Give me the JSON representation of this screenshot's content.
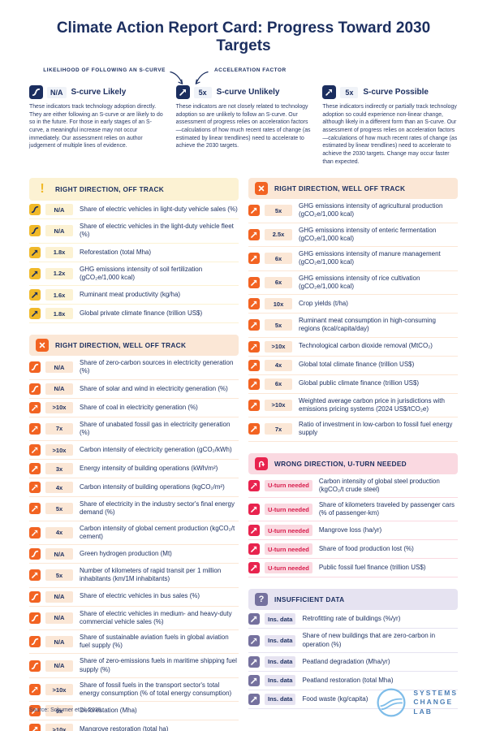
{
  "title": "Climate Action Report Card: Progress Toward 2030 Targets",
  "legend": {
    "likelihood_label": "LIKELIHOOD OF FOLLOWING AN S-CURVE",
    "acceleration_label": "ACCELERATION FACTOR",
    "items": [
      {
        "icon": "s-curve",
        "value": "N/A",
        "title": "S-curve Likely",
        "description": "These indicators track technology adoption directly. They are either following an S-curve or are likely to do so in the future. For those in early stages of an S-curve, a meaningful increase may not occur immediately. Our assessment relies on author judgement of multiple lines of evidence."
      },
      {
        "icon": "arrow",
        "value": "5x",
        "title": "S-curve Unlikely",
        "description": "These indicators are not closely related to technology adoption so are unlikely to follow an S-curve. Our assessment of progress relies on acceleration factors—calculations of how much recent rates of change (as estimated by linear trendlines) need to accelerate to achieve the 2030 targets."
      },
      {
        "icon": "dashed-arrow",
        "value": "5x",
        "title": "S-curve Possible",
        "description": "These indicators indirectly or partially track technology adoption so could experience non-linear change, although likely in a different form than an S-curve. Our assessment of progress relies on acceleration factors—calculations of how much recent rates of change (as estimated by linear trendlines) need to accelerate to achieve the 2030 targets. Change may occur faster than expected."
      }
    ]
  },
  "columns": [
    {
      "sections": [
        {
          "id": "right-direction-off-track",
          "theme": "yellow",
          "header_icon": "exclamation-icon",
          "header_glyph": "exclamation",
          "title": "RIGHT DIRECTION, OFF TRACK",
          "items": [
            {
              "icon": "s-curve",
              "value": "N/A",
              "label": "Share of electric vehicles in light-duty vehicle sales (%)"
            },
            {
              "icon": "s-curve",
              "value": "N/A",
              "label": "Share of electric vehicles in the light-duty vehicle fleet (%)"
            },
            {
              "icon": "arrow",
              "value": "1.8x",
              "label": "Reforestation (total Mha)"
            },
            {
              "icon": "arrow",
              "value": "1.2x",
              "label": "GHG emissions intensity of soil fertilization (gCO₂e/1,000 kcal)"
            },
            {
              "icon": "arrow",
              "value": "1.6x",
              "label": "Ruminant meat productivity (kg/ha)"
            },
            {
              "icon": "arrow",
              "value": "1.8x",
              "label": "Global private climate finance (trillion US$)"
            }
          ]
        },
        {
          "id": "right-direction-well-off-track-left",
          "theme": "orange",
          "header_icon": "x-icon",
          "header_glyph": "x",
          "title": "RIGHT DIRECTION, WELL OFF TRACK",
          "items": [
            {
              "icon": "s-curve",
              "value": "N/A",
              "label": "Share of zero-carbon sources in electricity generation (%)"
            },
            {
              "icon": "s-curve",
              "value": "N/A",
              "label": "Share of solar and wind in electricity generation (%)"
            },
            {
              "icon": "dashed-arrow",
              "value": ">10x",
              "label": "Share of coal in electricity generation (%)"
            },
            {
              "icon": "dashed-arrow",
              "value": "7x",
              "label": "Share of unabated fossil gas in electricity generation (%)"
            },
            {
              "icon": "dashed-arrow",
              "value": ">10x",
              "label": "Carbon intensity of electricity generation (gCO₂/kWh)"
            },
            {
              "icon": "arrow",
              "value": "3x",
              "label": "Energy intensity of building operations (kWh/m²)"
            },
            {
              "icon": "dashed-arrow",
              "value": "4x",
              "label": "Carbon intensity of building operations (kgCO₂/m²)"
            },
            {
              "icon": "dashed-arrow",
              "value": "5x",
              "label": "Share of electricity in the industry sector's final energy demand (%)"
            },
            {
              "icon": "dashed-arrow",
              "value": "4x",
              "label": "Carbon intensity of global cement production (kgCO₂/t cement)"
            },
            {
              "icon": "s-curve",
              "value": "N/A",
              "label": "Green hydrogen production (Mt)"
            },
            {
              "icon": "arrow",
              "value": "5x",
              "label": "Number of kilometers of rapid transit per 1 million inhabitants (km/1M inhabitants)"
            },
            {
              "icon": "s-curve",
              "value": "N/A",
              "label": "Share of electric vehicles in bus sales (%)"
            },
            {
              "icon": "s-curve",
              "value": "N/A",
              "label": "Share of electric vehicles in medium- and heavy-duty commercial vehicle sales (%)"
            },
            {
              "icon": "s-curve",
              "value": "N/A",
              "label": "Share of sustainable aviation fuels in global aviation fuel supply (%)"
            },
            {
              "icon": "s-curve",
              "value": "N/A",
              "label": "Share of zero-emissions fuels in maritime shipping fuel supply (%)"
            },
            {
              "icon": "dashed-arrow",
              "value": ">10x",
              "label": "Share of fossil fuels in the transport sector's total energy consumption (% of total energy consumption)"
            },
            {
              "icon": "arrow",
              "value": "9x",
              "label": "Deforestation (Mha)"
            },
            {
              "icon": "arrow",
              "value": ">10x",
              "label": "Mangrove restoration (total ha)"
            }
          ]
        }
      ]
    },
    {
      "sections": [
        {
          "id": "right-direction-well-off-track-right",
          "theme": "orange",
          "header_icon": "x-icon",
          "header_glyph": "x",
          "title": "RIGHT DIRECTION, WELL OFF TRACK",
          "items": [
            {
              "icon": "arrow",
              "value": "5x",
              "label": "GHG emissions intensity of agricultural production (gCO₂e/1,000 kcal)"
            },
            {
              "icon": "arrow",
              "value": "2.5x",
              "label": "GHG emissions intensity of enteric fermentation (gCO₂e/1,000 kcal)"
            },
            {
              "icon": "arrow",
              "value": "6x",
              "label": "GHG emissions intensity of manure management (gCO₂e/1,000 kcal)"
            },
            {
              "icon": "arrow",
              "value": "6x",
              "label": "GHG emissions intensity of rice cultivation (gCO₂e/1,000 kcal)"
            },
            {
              "icon": "arrow",
              "value": "10x",
              "label": "Crop yields (t/ha)"
            },
            {
              "icon": "arrow",
              "value": "5x",
              "label": "Ruminant meat consumption in high-consuming regions (kcal/capita/day)"
            },
            {
              "icon": "dashed-arrow",
              "value": ">10x",
              "label": "Technological carbon dioxide removal (MtCO₂)"
            },
            {
              "icon": "arrow",
              "value": "4x",
              "label": "Global total climate finance (trillion US$)"
            },
            {
              "icon": "arrow",
              "value": "6x",
              "label": "Global public climate finance (trillion US$)"
            },
            {
              "icon": "arrow",
              "value": ">10x",
              "label": "Weighted average carbon price in jurisdictions with emissions pricing systems (2024 US$/tCO₂e)"
            },
            {
              "icon": "arrow",
              "value": "7x",
              "label": "Ratio of investment in low-carbon to fossil fuel energy supply"
            }
          ]
        },
        {
          "id": "wrong-direction-u-turn-needed",
          "theme": "red",
          "header_icon": "u-turn-icon",
          "header_glyph": "u-turn",
          "title": "WRONG DIRECTION, U-TURN NEEDED",
          "items": [
            {
              "icon": "dashed-arrow",
              "value": "U-turn needed",
              "label": "Carbon intensity of global steel production (kgCO₂/t crude steel)"
            },
            {
              "icon": "arrow",
              "value": "U-turn needed",
              "label": "Share of kilometers traveled by passenger cars (% of passenger-km)"
            },
            {
              "icon": "arrow",
              "value": "U-turn needed",
              "label": "Mangrove loss (ha/yr)"
            },
            {
              "icon": "arrow",
              "value": "U-turn needed",
              "label": "Share of food production lost (%)"
            },
            {
              "icon": "arrow",
              "value": "U-turn needed",
              "label": "Public fossil fuel finance (trillion US$)"
            }
          ]
        },
        {
          "id": "insufficient-data",
          "theme": "purple",
          "header_icon": "question-icon",
          "header_glyph": "question",
          "title": "INSUFFICIENT DATA",
          "items": [
            {
              "icon": "arrow",
              "value": "Ins. data",
              "label": "Retrofitting rate of buildings (%/yr)"
            },
            {
              "icon": "dashed-arrow",
              "value": "Ins. data",
              "label": "Share of new buildings that are zero-carbon in operation (%)"
            },
            {
              "icon": "arrow",
              "value": "Ins. data",
              "label": "Peatland degradation (Mha/yr)"
            },
            {
              "icon": "arrow",
              "value": "Ins. data",
              "label": "Peatland restoration (total Mha)"
            },
            {
              "icon": "arrow",
              "value": "Ins. data",
              "label": "Food waste (kg/capita)"
            }
          ]
        }
      ]
    }
  ],
  "footer": {
    "source": "Source: Schumer et al. 2025.",
    "logo_text": "SYSTEMS\nCHANGE\nLAB"
  },
  "colors": {
    "navy": "#1B2E5F",
    "yellow_accent": "#F0B929",
    "yellow_light": "#FCF2D3",
    "orange_accent": "#F26322",
    "orange_light": "#FBE7D6",
    "red_accent": "#E8234E",
    "red_light": "#FAD9E1",
    "red_badge_text": "#D81B4B",
    "purple_accent": "#75719E",
    "purple_light": "#E6E3F1",
    "logo_blue": "#7FBDE9",
    "logo_text_blue": "#4B7EB5"
  }
}
